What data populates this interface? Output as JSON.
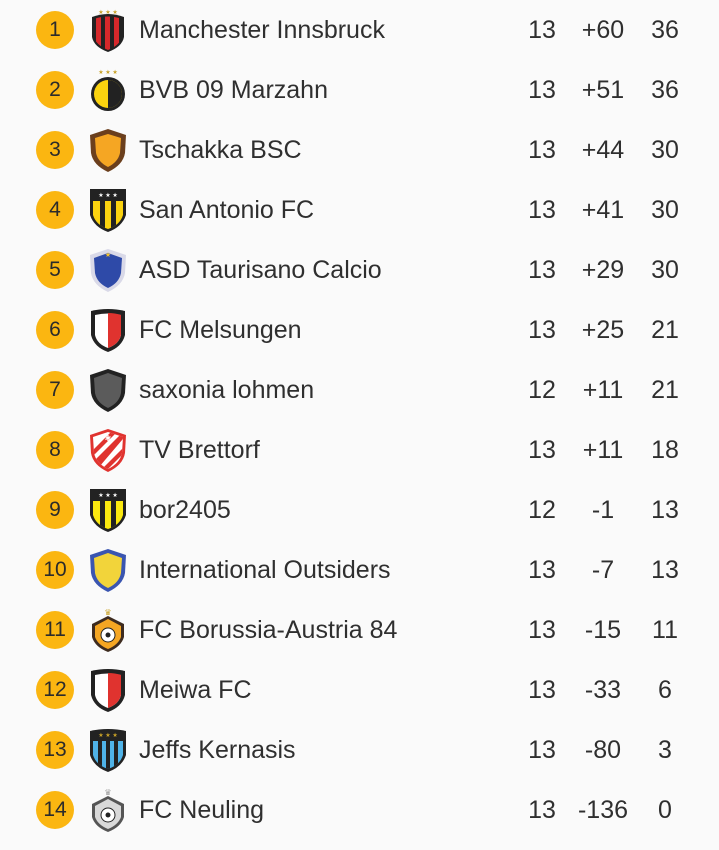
{
  "standings": [
    {
      "rank": "1",
      "team": "Manchester Innsbruck",
      "played": "13",
      "diff": "+60",
      "points": "36",
      "crest": "crest-red-black-stripes",
      "colors": {
        "primary": "#d6282b",
        "secondary": "#222222"
      }
    },
    {
      "rank": "2",
      "team": "BVB 09 Marzahn",
      "played": "13",
      "diff": "+51",
      "points": "36",
      "crest": "crest-yellow-black-circle",
      "colors": {
        "primary": "#fbd30f",
        "secondary": "#222222"
      }
    },
    {
      "rank": "3",
      "team": "Tschakka BSC",
      "played": "13",
      "diff": "+44",
      "points": "30",
      "crest": "crest-brown-orange-shield",
      "colors": {
        "primary": "#f5a623",
        "secondary": "#6b3f1d"
      }
    },
    {
      "rank": "4",
      "team": "San Antonio FC",
      "played": "13",
      "diff": "+41",
      "points": "30",
      "crest": "crest-yellow-black-stripes",
      "colors": {
        "primary": "#fbd30f",
        "secondary": "#222222"
      }
    },
    {
      "rank": "5",
      "team": "ASD Taurisano Calcio",
      "played": "13",
      "diff": "+29",
      "points": "30",
      "crest": "crest-blue-shield",
      "colors": {
        "primary": "#2e4aa8",
        "secondary": "#f2c230"
      }
    },
    {
      "rank": "6",
      "team": "FC Melsungen",
      "played": "13",
      "diff": "+25",
      "points": "21",
      "crest": "crest-red-white-shield",
      "colors": {
        "primary": "#e0332f",
        "secondary": "#222222"
      }
    },
    {
      "rank": "7",
      "team": "saxonia lohmen",
      "played": "12",
      "diff": "+11",
      "points": "21",
      "crest": "crest-grey-shield",
      "colors": {
        "primary": "#5b5b5b",
        "secondary": "#222222"
      }
    },
    {
      "rank": "8",
      "team": "TV Brettorf",
      "played": "13",
      "diff": "+11",
      "points": "18",
      "crest": "crest-red-white-diagonal",
      "colors": {
        "primary": "#e0332f",
        "secondary": "#ffffff"
      }
    },
    {
      "rank": "9",
      "team": "bor2405",
      "played": "12",
      "diff": "-1",
      "points": "13",
      "crest": "crest-yellow-black-stripes",
      "colors": {
        "primary": "#fbe90f",
        "secondary": "#222222"
      }
    },
    {
      "rank": "10",
      "team": "International Outsiders",
      "played": "13",
      "diff": "-7",
      "points": "13",
      "crest": "crest-blue-yellow-shield",
      "colors": {
        "primary": "#f2d43a",
        "secondary": "#3a55b0"
      }
    },
    {
      "rank": "11",
      "team": "FC Borussia-Austria 84",
      "played": "13",
      "diff": "-15",
      "points": "11",
      "crest": "crest-orange-ball",
      "colors": {
        "primary": "#f5a623",
        "secondary": "#3d2b1f"
      }
    },
    {
      "rank": "12",
      "team": "Meiwa FC",
      "played": "13",
      "diff": "-33",
      "points": "6",
      "crest": "crest-red-white-shield",
      "colors": {
        "primary": "#e0332f",
        "secondary": "#222222"
      }
    },
    {
      "rank": "13",
      "team": "Jeffs Kernasis",
      "played": "13",
      "diff": "-80",
      "points": "3",
      "crest": "crest-lightblue-black-stripes",
      "colors": {
        "primary": "#4fb3e8",
        "secondary": "#222222"
      }
    },
    {
      "rank": "14",
      "team": "FC Neuling",
      "played": "13",
      "diff": "-136",
      "points": "0",
      "crest": "crest-grey-ball",
      "colors": {
        "primary": "#d9d9d9",
        "secondary": "#555555"
      }
    }
  ]
}
